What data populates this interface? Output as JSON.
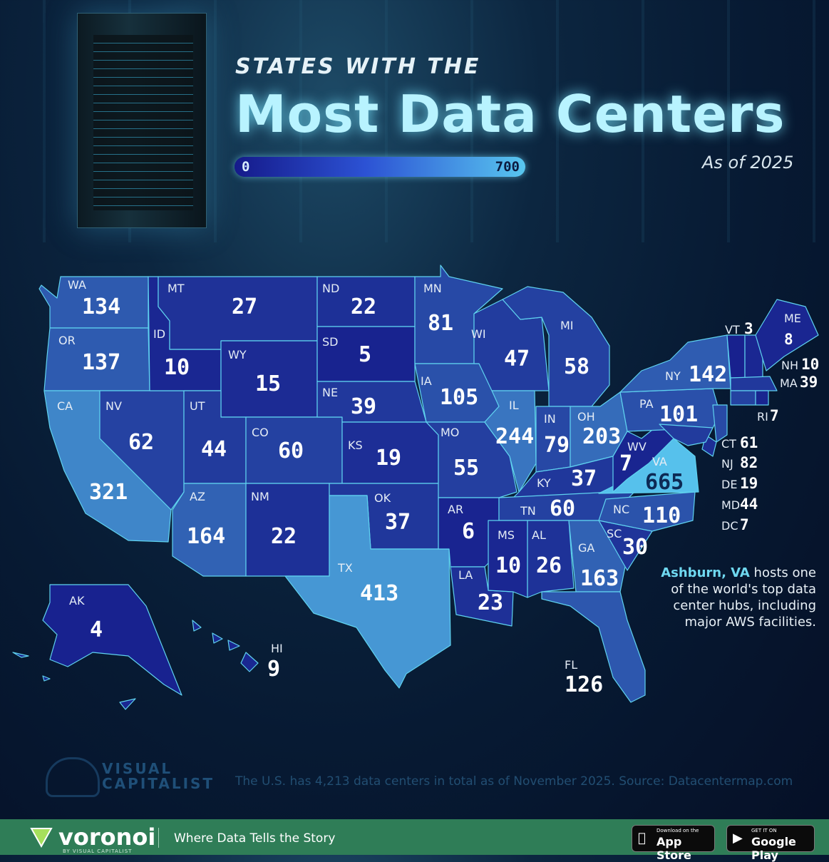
{
  "header": {
    "title_small": "STATES WITH THE",
    "title_big": "Most Data Centers",
    "subtitle": "As of 2025"
  },
  "scale": {
    "min_label": "0",
    "max_label": "700",
    "min": 0,
    "max": 700,
    "color_low": "#151a8a",
    "color_high": "#58c6ef"
  },
  "states": [
    {
      "abbr": "WA",
      "value": "134"
    },
    {
      "abbr": "OR",
      "value": "137"
    },
    {
      "abbr": "CA",
      "value": "321"
    },
    {
      "abbr": "NV",
      "value": "62"
    },
    {
      "abbr": "ID",
      "value": "10"
    },
    {
      "abbr": "MT",
      "value": "27"
    },
    {
      "abbr": "WY",
      "value": "15"
    },
    {
      "abbr": "UT",
      "value": "44"
    },
    {
      "abbr": "CO",
      "value": "60"
    },
    {
      "abbr": "AZ",
      "value": "164"
    },
    {
      "abbr": "NM",
      "value": "22"
    },
    {
      "abbr": "ND",
      "value": "22"
    },
    {
      "abbr": "SD",
      "value": "5"
    },
    {
      "abbr": "NE",
      "value": "39"
    },
    {
      "abbr": "KS",
      "value": "19"
    },
    {
      "abbr": "OK",
      "value": "37"
    },
    {
      "abbr": "TX",
      "value": "413"
    },
    {
      "abbr": "MN",
      "value": "81"
    },
    {
      "abbr": "IA",
      "value": "105"
    },
    {
      "abbr": "MO",
      "value": "55"
    },
    {
      "abbr": "AR",
      "value": "6"
    },
    {
      "abbr": "LA",
      "value": "23"
    },
    {
      "abbr": "WI",
      "value": "47"
    },
    {
      "abbr": "IL",
      "value": "244"
    },
    {
      "abbr": "MI",
      "value": "58"
    },
    {
      "abbr": "IN",
      "value": "79"
    },
    {
      "abbr": "OH",
      "value": "203"
    },
    {
      "abbr": "KY",
      "value": "37"
    },
    {
      "abbr": "TN",
      "value": "60"
    },
    {
      "abbr": "MS",
      "value": "10"
    },
    {
      "abbr": "AL",
      "value": "26"
    },
    {
      "abbr": "GA",
      "value": "163"
    },
    {
      "abbr": "FL",
      "value": "126"
    },
    {
      "abbr": "SC",
      "value": "30"
    },
    {
      "abbr": "NC",
      "value": "110"
    },
    {
      "abbr": "VA",
      "value": "665"
    },
    {
      "abbr": "WV",
      "value": "7"
    },
    {
      "abbr": "PA",
      "value": "101"
    },
    {
      "abbr": "NY",
      "value": "142"
    },
    {
      "abbr": "VT",
      "value": "3"
    },
    {
      "abbr": "ME",
      "value": "8"
    },
    {
      "abbr": "NH",
      "value": "10"
    },
    {
      "abbr": "MA",
      "value": "39"
    },
    {
      "abbr": "RI",
      "value": "7"
    },
    {
      "abbr": "CT",
      "value": "61"
    },
    {
      "abbr": "NJ",
      "value": "82"
    },
    {
      "abbr": "DE",
      "value": "19"
    },
    {
      "abbr": "MD",
      "value": "44"
    },
    {
      "abbr": "DC",
      "value": "7"
    },
    {
      "abbr": "AK",
      "value": "4"
    },
    {
      "abbr": "HI",
      "value": "9"
    }
  ],
  "note": {
    "highlight": "Ashburn, VA",
    "text": " hosts one of the world's top data center hubs, including major AWS facilities."
  },
  "credits": {
    "logo_line1": "VISUAL",
    "logo_line2": "CAPITALIST",
    "source": "The U.S. has 4,213 data centers in total as of November 2025. Source: Datacentermap.com"
  },
  "footer": {
    "brand": "voronoi",
    "brand_by": "BY VISUAL CAPITALIST",
    "tagline": "Where Data Tells the Story",
    "appstore_small": "Download on the",
    "appstore_big": "App Store",
    "gplay_small": "GET IT ON",
    "gplay_big": "Google Play"
  }
}
